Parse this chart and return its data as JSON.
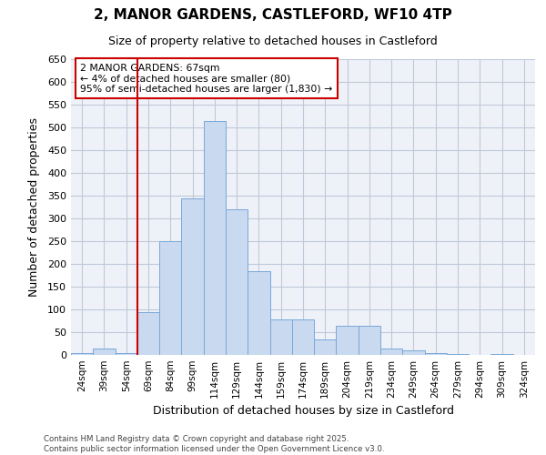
{
  "title_line1": "2, MANOR GARDENS, CASTLEFORD, WF10 4TP",
  "title_line2": "Size of property relative to detached houses in Castleford",
  "xlabel": "Distribution of detached houses by size in Castleford",
  "ylabel": "Number of detached properties",
  "categories": [
    "24sqm",
    "39sqm",
    "54sqm",
    "69sqm",
    "84sqm",
    "99sqm",
    "114sqm",
    "129sqm",
    "144sqm",
    "159sqm",
    "174sqm",
    "189sqm",
    "204sqm",
    "219sqm",
    "234sqm",
    "249sqm",
    "264sqm",
    "279sqm",
    "294sqm",
    "309sqm",
    "324sqm"
  ],
  "values": [
    5,
    15,
    5,
    95,
    250,
    345,
    515,
    320,
    185,
    78,
    78,
    35,
    65,
    65,
    15,
    10,
    5,
    3,
    0,
    2,
    0
  ],
  "bar_color": "#c8d9f0",
  "bar_edge_color": "#7aa8d8",
  "grid_color": "#c0c8d8",
  "background_color": "#eef2f8",
  "vline_x": 2.5,
  "vline_color": "#cc0000",
  "annotation_text": "2 MANOR GARDENS: 67sqm\n← 4% of detached houses are smaller (80)\n95% of semi-detached houses are larger (1,830) →",
  "annotation_box_color": "#cc0000",
  "ylim": [
    0,
    650
  ],
  "yticks": [
    0,
    50,
    100,
    150,
    200,
    250,
    300,
    350,
    400,
    450,
    500,
    550,
    600,
    650
  ],
  "footer_line1": "Contains HM Land Registry data © Crown copyright and database right 2025.",
  "footer_line2": "Contains public sector information licensed under the Open Government Licence v3.0."
}
